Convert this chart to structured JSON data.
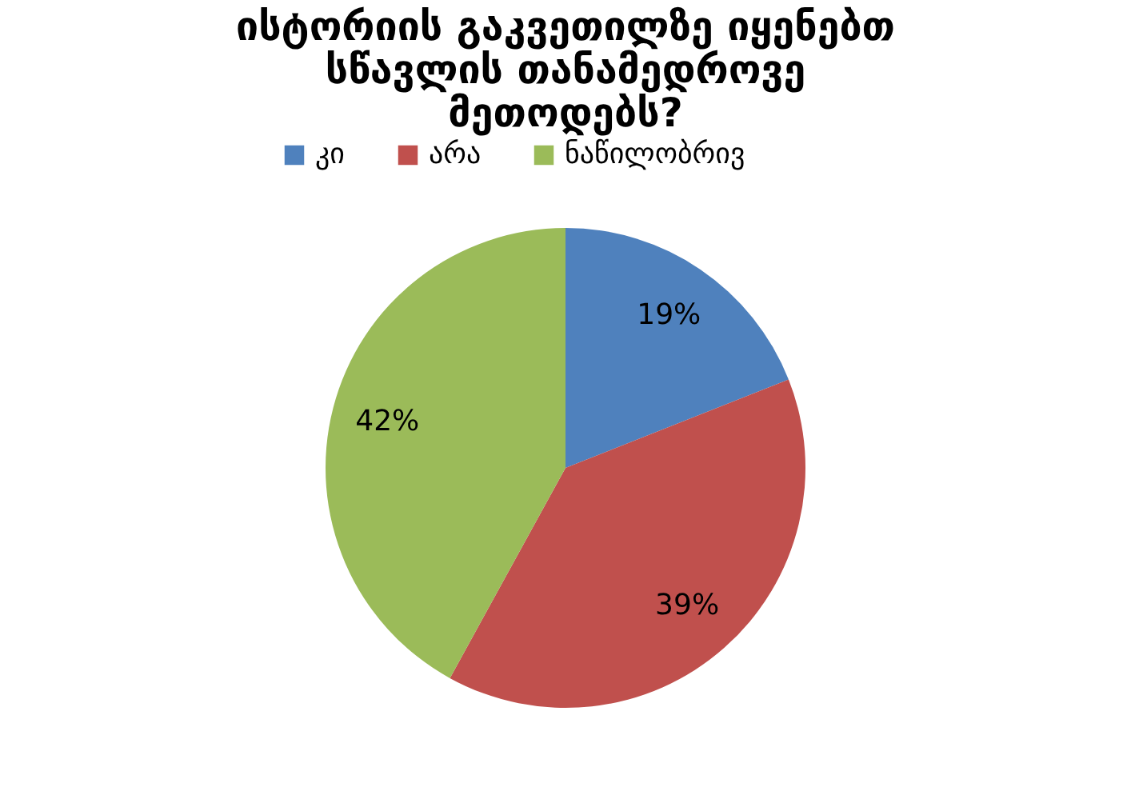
{
  "chart_data": {
    "type": "pie",
    "title": "ისტორიის გაკვეთილზე იყენებთ სწავლის თანამედროვე მეთოდებს?",
    "categories": [
      "კი",
      "არა",
      "ნაწილობრივ"
    ],
    "values": [
      19,
      39,
      42
    ],
    "colors": [
      "#4f81bd",
      "#c0504d",
      "#9bbb59"
    ],
    "value_labels": [
      "19%",
      "39%",
      "42%"
    ],
    "legend": "top"
  }
}
